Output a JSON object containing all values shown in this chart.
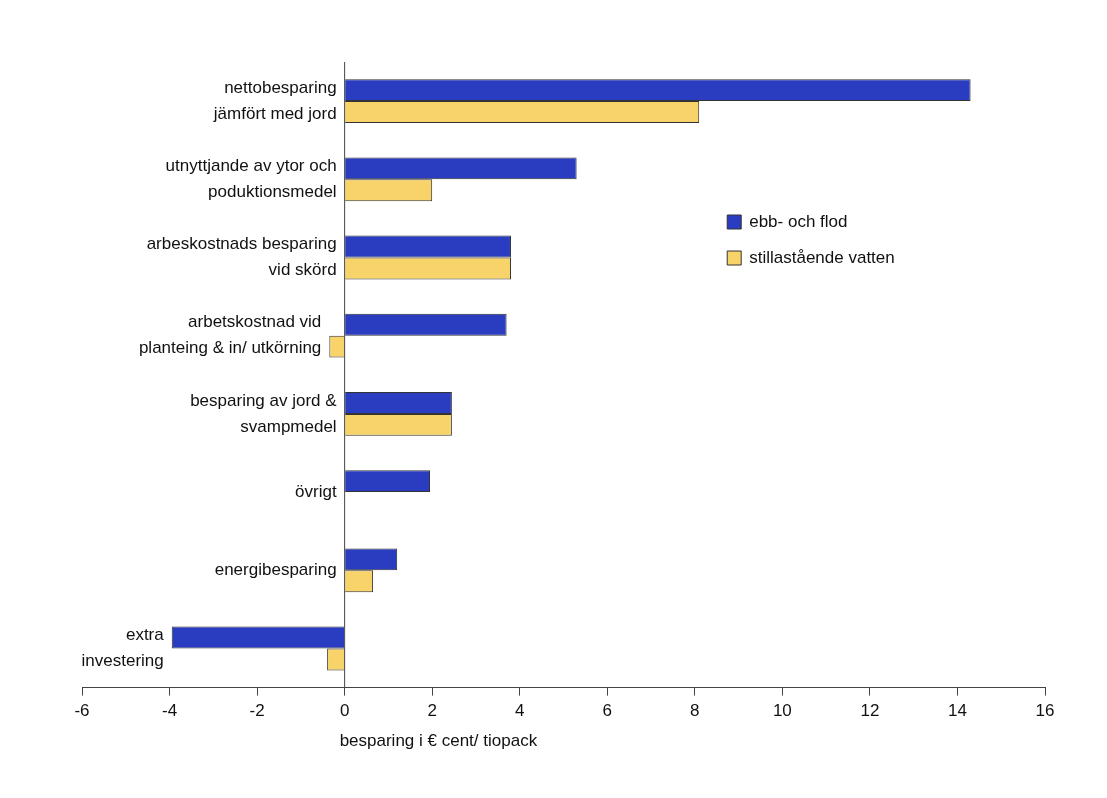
{
  "chart_data": {
    "type": "bar",
    "orientation": "horizontal",
    "xlabel": "besparing i € cent/ tiopack",
    "categories": [
      "nettobesparing\njämfört med jord",
      "utnyttjande av ytor och\npoduktionsmedel",
      "arbeskostnads besparing\nvid skörd",
      "arbetskostnad vid\nplanteing & in/ utkörning",
      "besparing av jord &\nsvampmedel",
      "övrigt",
      "energibesparing",
      "extra\ninvestering"
    ],
    "series": [
      {
        "name": "ebb- och flod",
        "color": "#2a3cc0",
        "values": [
          14.3,
          5.3,
          3.8,
          3.7,
          2.45,
          1.95,
          1.2,
          -3.95
        ]
      },
      {
        "name": "stillastående vatten",
        "color": "#f7d36a",
        "values": [
          8.1,
          2.0,
          3.8,
          -0.35,
          2.45,
          null,
          0.65,
          -0.4
        ]
      }
    ],
    "xlim": [
      -6,
      16
    ],
    "xticks": [
      -6,
      -4,
      -2,
      0,
      2,
      4,
      6,
      8,
      10,
      12,
      14,
      16
    ],
    "grid": false,
    "legend": "top right"
  }
}
